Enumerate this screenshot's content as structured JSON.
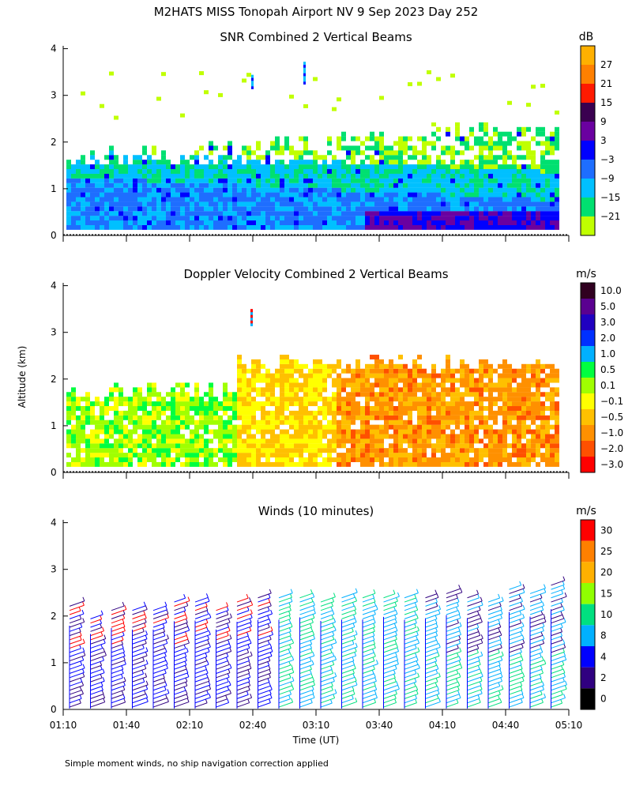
{
  "header": {
    "title": "M2HATS MISS Tonopah Airport NV   9 Sep 2023 Day 252"
  },
  "footnote": "Simple moment winds, no ship navigation correction applied",
  "chart_data": [
    {
      "type": "heatmap",
      "title": "SNR Combined 2 Vertical Beams",
      "unit": "dB",
      "ylabel": "Altitude (km)",
      "ylim": [
        0,
        4
      ],
      "yticks": [
        0,
        1,
        2,
        3,
        4
      ],
      "colorbar": {
        "labels": [
          "27",
          "21",
          "15",
          "9",
          "3",
          "−3",
          "−9",
          "−15",
          "−21"
        ],
        "colors": [
          "#ffb000",
          "#ff8000",
          "#ff1a00",
          "#3a0050",
          "#6a00a0",
          "#0000ff",
          "#1e6eff",
          "#00c0ff",
          "#00e070",
          "#c0ff00"
        ]
      }
    },
    {
      "type": "heatmap",
      "title": "Doppler Velocity Combined 2 Vertical Beams",
      "unit": "m/s",
      "ylim": [
        0,
        4
      ],
      "yticks": [
        0,
        1,
        2,
        3,
        4
      ],
      "colorbar": {
        "labels": [
          "10.0",
          "5.0",
          "3.0",
          "2.0",
          "1.0",
          "0.5",
          "0.1",
          "−0.1",
          "−0.5",
          "−1.0",
          "−2.0",
          "−3.0"
        ],
        "colors": [
          "#300020",
          "#5a0090",
          "#2000c0",
          "#0030ff",
          "#00b0ff",
          "#00ff40",
          "#a0ff00",
          "#ffff00",
          "#ffc000",
          "#ff9000",
          "#ff5000",
          "#ff0000"
        ]
      }
    },
    {
      "type": "scatter",
      "title": "Winds (10 minutes)",
      "unit": "m/s",
      "ylim": [
        0,
        4
      ],
      "yticks": [
        0,
        1,
        2,
        3,
        4
      ],
      "xlabel": "Time (UT)",
      "xticks": [
        "01:10",
        "01:40",
        "02:10",
        "02:40",
        "03:10",
        "03:40",
        "04:10",
        "04:40",
        "05:10"
      ],
      "colorbar": {
        "labels": [
          "30",
          "25",
          "20",
          "15",
          "10",
          "8",
          "4",
          "2",
          "0"
        ],
        "colors": [
          "#ff0000",
          "#ff8000",
          "#ffb000",
          "#90ff00",
          "#00e080",
          "#00b0ff",
          "#0000ff",
          "#300080",
          "#000000"
        ]
      }
    }
  ]
}
